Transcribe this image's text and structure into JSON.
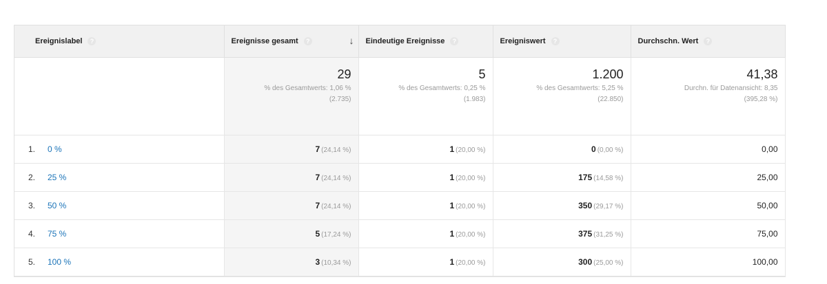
{
  "table": {
    "headers": [
      {
        "label": "Ereignislabel"
      },
      {
        "label": "Ereignisse gesamt"
      },
      {
        "label": "Eindeutige Ereignisse"
      },
      {
        "label": "Ereigniswert"
      },
      {
        "label": "Durchschn. Wert"
      }
    ],
    "help_glyph": "?",
    "sort_arrow": "↓",
    "totals": [
      {
        "value": "29",
        "sub1": "% des Gesamtwerts: 1,06 %",
        "sub2": "(2.735)"
      },
      {
        "value": "5",
        "sub1": "% des Gesamtwerts: 0,25 %",
        "sub2": "(1.983)"
      },
      {
        "value": "1.200",
        "sub1": "% des Gesamtwerts: 5,25 %",
        "sub2": "(22.850)"
      },
      {
        "value": "41,38",
        "sub1": "Durchn. für Datenansicht: 8,35",
        "sub2": "(395,28 %)"
      }
    ],
    "rows": [
      {
        "rank": "1.",
        "label": "0 %",
        "events": "7",
        "events_pct": "(24,14 %)",
        "unique": "1",
        "unique_pct": "(20,00 %)",
        "value": "0",
        "value_pct": "(0,00 %)",
        "avg": "0,00"
      },
      {
        "rank": "2.",
        "label": "25 %",
        "events": "7",
        "events_pct": "(24,14 %)",
        "unique": "1",
        "unique_pct": "(20,00 %)",
        "value": "175",
        "value_pct": "(14,58 %)",
        "avg": "25,00"
      },
      {
        "rank": "3.",
        "label": "50 %",
        "events": "7",
        "events_pct": "(24,14 %)",
        "unique": "1",
        "unique_pct": "(20,00 %)",
        "value": "350",
        "value_pct": "(29,17 %)",
        "avg": "50,00"
      },
      {
        "rank": "4.",
        "label": "75 %",
        "events": "5",
        "events_pct": "(17,24 %)",
        "unique": "1",
        "unique_pct": "(20,00 %)",
        "value": "375",
        "value_pct": "(31,25 %)",
        "avg": "75,00"
      },
      {
        "rank": "5.",
        "label": "100 %",
        "events": "3",
        "events_pct": "(10,34 %)",
        "unique": "1",
        "unique_pct": "(20,00 %)",
        "value": "300",
        "value_pct": "(25,00 %)",
        "avg": "100,00"
      }
    ]
  }
}
